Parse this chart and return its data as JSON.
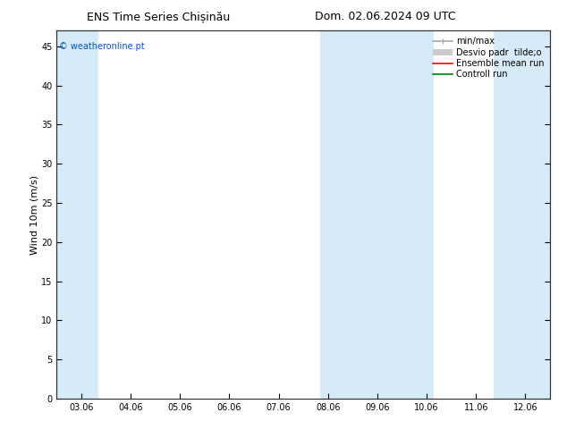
{
  "title_left": "ENS Time Series Chișinău",
  "title_right": "Dom. 02.06.2024 09 UTC",
  "ylabel": "Wind 10m (m/s)",
  "xlim_dates": [
    "03.06",
    "04.06",
    "05.06",
    "06.06",
    "07.06",
    "08.06",
    "09.06",
    "10.06",
    "11.06",
    "12.06"
  ],
  "ylim": [
    0,
    47
  ],
  "yticks": [
    0,
    5,
    10,
    15,
    20,
    25,
    30,
    35,
    40,
    45
  ],
  "bg_color": "#ffffff",
  "plot_bg_color": "#ffffff",
  "shaded_color": "#d6eaf8",
  "watermark_text": "© weatheronline.pt",
  "watermark_color": "#0055cc",
  "legend_minmax_color": "#aaaaaa",
  "legend_desvio_color": "#cccccc",
  "legend_ensemble_color": "#ff0000",
  "legend_control_color": "#008000",
  "grid_color": "#dddddd",
  "title_fontsize": 9,
  "tick_label_fontsize": 7,
  "axis_label_fontsize": 8,
  "legend_fontsize": 7
}
